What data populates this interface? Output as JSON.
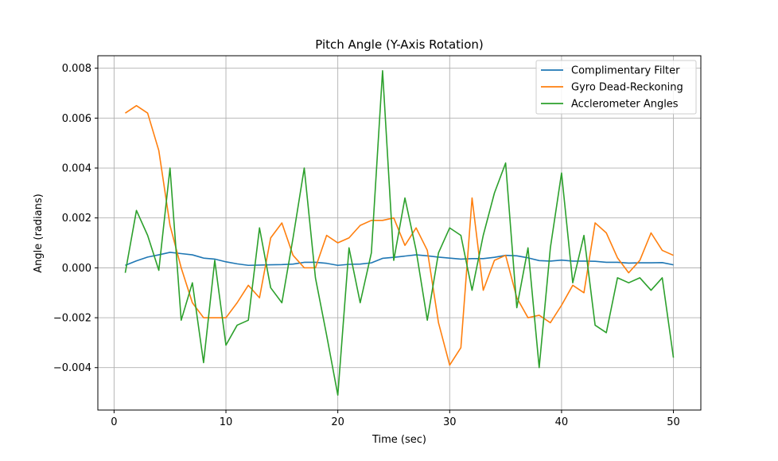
{
  "chart_data": {
    "type": "line",
    "title": "Pitch Angle (Y-Axis Rotation)",
    "xlabel": "Time (sec)",
    "ylabel": "Angle (radians)",
    "xlim": [
      -1.45,
      52.45
    ],
    "ylim": [
      -0.0057,
      0.0085
    ],
    "xticks": [
      0,
      10,
      20,
      30,
      40,
      50
    ],
    "xtick_labels": [
      "0",
      "10",
      "20",
      "30",
      "40",
      "50"
    ],
    "yticks": [
      -0.004,
      -0.002,
      0.0,
      0.002,
      0.004,
      0.006,
      0.008
    ],
    "ytick_labels": [
      "−0.004",
      "−0.002",
      "0.000",
      "0.002",
      "0.004",
      "0.006",
      "0.008"
    ],
    "grid": true,
    "legend_position": "top-right",
    "x": [
      1,
      2,
      3,
      4,
      5,
      6,
      7,
      8,
      9,
      10,
      11,
      12,
      13,
      14,
      15,
      16,
      17,
      18,
      19,
      20,
      21,
      22,
      23,
      24,
      25,
      26,
      27,
      28,
      29,
      30,
      31,
      32,
      33,
      34,
      35,
      36,
      37,
      38,
      39,
      40,
      41,
      42,
      43,
      44,
      45,
      46,
      47,
      48,
      49,
      50
    ],
    "series": [
      {
        "name": "Complimentary Filter",
        "color": "#1f77b4",
        "values": [
          0.0001,
          0.00028,
          0.00043,
          0.00052,
          0.00062,
          0.00057,
          0.00052,
          0.00039,
          0.00035,
          0.00024,
          0.00016,
          0.0001,
          0.00011,
          0.00012,
          0.00013,
          0.00015,
          0.00022,
          0.00022,
          0.00018,
          0.0001,
          0.00014,
          0.00015,
          0.0002,
          0.00038,
          0.00042,
          0.00047,
          0.00052,
          0.00048,
          0.00043,
          0.00039,
          0.00035,
          0.00037,
          0.00037,
          0.00042,
          0.0005,
          0.00048,
          0.0004,
          0.00029,
          0.00027,
          0.00031,
          0.00027,
          0.00027,
          0.00026,
          0.00022,
          0.00022,
          0.00019,
          0.0002,
          0.0002,
          0.00021,
          0.00012
        ]
      },
      {
        "name": "Gyro Dead-Reckoning",
        "color": "#ff7f0e",
        "values": [
          0.0062,
          0.0065,
          0.0062,
          0.0047,
          0.0017,
          0.0,
          -0.0014,
          -0.002,
          -0.002,
          -0.002,
          -0.0014,
          -0.0007,
          -0.0012,
          0.0012,
          0.0018,
          0.0005,
          0.0,
          0.0,
          0.0013,
          0.001,
          0.0012,
          0.0017,
          0.0019,
          0.0019,
          0.002,
          0.0009,
          0.0016,
          0.0007,
          -0.0022,
          -0.0039,
          -0.0032,
          0.0028,
          -0.0009,
          0.0003,
          0.0005,
          -0.0012,
          -0.002,
          -0.0019,
          -0.0022,
          -0.0015,
          -0.0007,
          -0.001,
          0.0018,
          0.0014,
          0.0004,
          -0.0002,
          0.0003,
          0.0014,
          0.0007,
          0.0005
        ]
      },
      {
        "name": "Acclerometer Angles",
        "color": "#2ca02c",
        "values": [
          -0.0002,
          0.0023,
          0.0013,
          -0.0001,
          0.004,
          -0.0021,
          -0.0006,
          -0.0038,
          0.0003,
          -0.0031,
          -0.0023,
          -0.0021,
          0.0016,
          -0.0008,
          -0.0014,
          0.0012,
          0.004,
          -0.0004,
          -0.0027,
          -0.0051,
          0.0008,
          -0.0014,
          0.0006,
          0.0079,
          0.0003,
          0.0028,
          0.0007,
          -0.0021,
          0.0006,
          0.0016,
          0.0013,
          -0.0009,
          0.0013,
          0.003,
          0.0042,
          -0.0016,
          0.0008,
          -0.004,
          0.0008,
          0.0038,
          -0.0006,
          0.0013,
          -0.0023,
          -0.0026,
          -0.0004,
          -0.0006,
          -0.0004,
          -0.0009,
          -0.0004,
          -0.0036
        ]
      }
    ]
  }
}
